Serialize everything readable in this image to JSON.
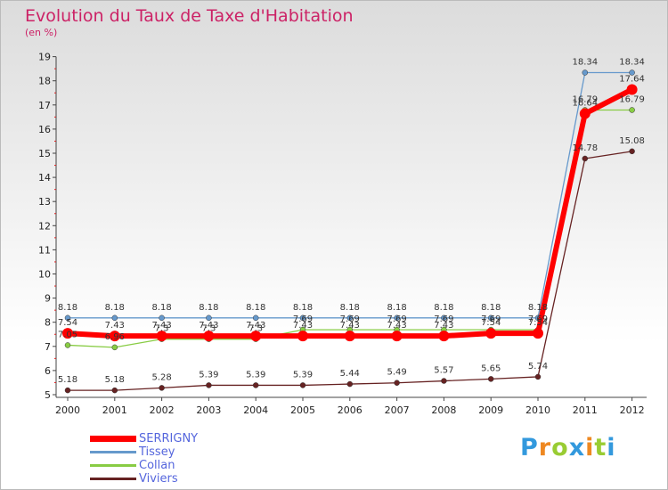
{
  "title": "Evolution du Taux de Taxe d'Habitation",
  "subtitle": "(en %)",
  "chart_data": {
    "type": "line",
    "title": "Evolution du Taux de Taxe d'Habitation",
    "ylabel": "(en %)",
    "xlabel": "",
    "x": [
      "2000",
      "2001",
      "2002",
      "2003",
      "2004",
      "2005",
      "2006",
      "2007",
      "2008",
      "2009",
      "2010",
      "2011",
      "2012"
    ],
    "ylim": [
      5,
      19
    ],
    "yticks": [
      5,
      6,
      7,
      8,
      9,
      10,
      11,
      12,
      13,
      14,
      15,
      16,
      17,
      18,
      19
    ],
    "grid": false,
    "legend_position": "bottom-left",
    "series": [
      {
        "name": "SERRIGNY",
        "color": "#ff0000",
        "values": [
          7.54,
          7.43,
          7.43,
          7.43,
          7.43,
          7.43,
          7.43,
          7.43,
          7.43,
          7.54,
          7.54,
          16.64,
          17.64
        ]
      },
      {
        "name": "Tissey",
        "color": "#6699cc",
        "values": [
          8.18,
          8.18,
          8.18,
          8.18,
          8.18,
          8.18,
          8.18,
          8.18,
          8.18,
          8.18,
          8.18,
          18.34,
          18.34
        ]
      },
      {
        "name": "Collan",
        "color": "#88cc44",
        "values": [
          7.05,
          6.96,
          7.3,
          7.3,
          7.3,
          7.69,
          7.69,
          7.69,
          7.69,
          7.69,
          7.69,
          16.79,
          16.79
        ]
      },
      {
        "name": "Viviers",
        "color": "#662222",
        "values": [
          5.18,
          5.18,
          5.28,
          5.39,
          5.39,
          5.39,
          5.44,
          5.49,
          5.57,
          5.65,
          5.74,
          14.78,
          15.08
        ]
      }
    ]
  },
  "logo": {
    "letters": [
      "P",
      "r",
      "o",
      "x",
      "i",
      "t",
      "i"
    ],
    "colors": [
      "#3399dd",
      "#ee8822",
      "#99cc33",
      "#3399dd",
      "#ee8822",
      "#99cc33",
      "#3399dd"
    ]
  }
}
